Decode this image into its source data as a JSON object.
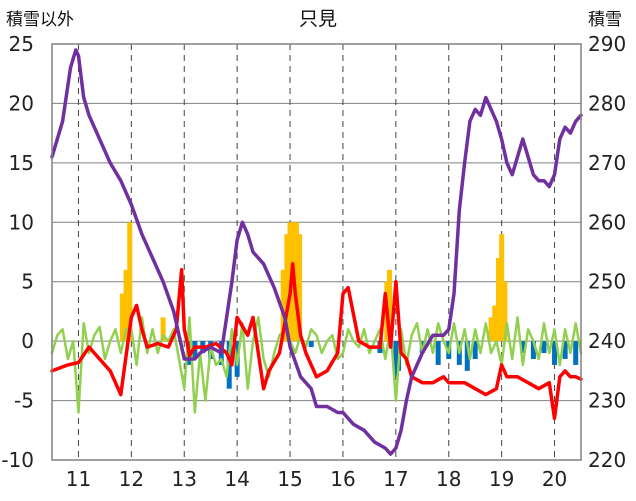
{
  "chart_data": {
    "type": "line",
    "title": "只見",
    "ylabel_left": "積雪以外",
    "ylabel_right": "積雪",
    "x_ticks": [
      "11",
      "12",
      "13",
      "14",
      "15",
      "16",
      "17",
      "18",
      "19",
      "20"
    ],
    "xlim": [
      10.5,
      20.5
    ],
    "ylim_left": [
      -10,
      25
    ],
    "ylim_right": [
      220,
      290
    ],
    "y_ticks_left": [
      -10,
      -5,
      0,
      5,
      10,
      15,
      20,
      25
    ],
    "y_ticks_right": [
      220,
      230,
      240,
      250,
      260,
      270,
      280,
      290
    ],
    "grid": "vertical dashed at each day, horizontal solid",
    "colors": {
      "snow_depth": "#7030A0",
      "temperature": "#FF0000",
      "precipitation_pos": "#FFC000",
      "precipitation_neg": "#0070C0",
      "snow_change": "#92D050"
    },
    "series": [
      {
        "key": "snow_depth",
        "axis": "right",
        "x": [
          10.5,
          10.7,
          10.85,
          10.95,
          11.0,
          11.1,
          11.2,
          11.4,
          11.6,
          11.8,
          12.0,
          12.2,
          12.4,
          12.6,
          12.8,
          12.9,
          13.0,
          13.2,
          13.3,
          13.5,
          13.7,
          13.9,
          14.0,
          14.1,
          14.2,
          14.3,
          14.5,
          14.7,
          14.9,
          15.0,
          15.2,
          15.4,
          15.5,
          15.7,
          15.9,
          16.0,
          16.2,
          16.4,
          16.6,
          16.8,
          16.9,
          17.0,
          17.1,
          17.2,
          17.3,
          17.5,
          17.7,
          17.9,
          18.0,
          18.1,
          18.2,
          18.3,
          18.4,
          18.5,
          18.6,
          18.7,
          18.8,
          18.9,
          19.0,
          19.1,
          19.2,
          19.3,
          19.4,
          19.5,
          19.6,
          19.7,
          19.8,
          19.9,
          20.0,
          20.1,
          20.2,
          20.3,
          20.4,
          20.5
        ],
        "y": [
          271,
          277,
          286,
          289,
          288,
          281,
          278,
          274,
          270,
          267,
          263,
          258,
          254,
          250,
          245,
          241,
          237,
          237,
          238,
          239,
          238,
          250,
          257,
          260,
          258,
          255,
          253,
          249,
          244,
          239,
          234,
          232,
          229,
          229,
          228,
          228,
          226,
          225,
          223,
          222,
          221,
          222,
          225,
          230,
          234,
          238,
          241,
          241,
          242,
          248,
          262,
          270,
          277,
          279,
          278,
          281,
          279,
          277,
          274,
          270,
          268,
          271,
          274,
          271,
          268,
          267,
          267,
          266,
          268,
          274,
          276,
          275,
          277,
          278
        ]
      },
      {
        "key": "temperature",
        "axis": "left",
        "x": [
          10.5,
          10.8,
          11.0,
          11.2,
          11.4,
          11.6,
          11.8,
          12.0,
          12.1,
          12.2,
          12.3,
          12.5,
          12.7,
          12.85,
          12.95,
          13.0,
          13.05,
          13.1,
          13.2,
          13.4,
          13.6,
          13.8,
          13.9,
          14.0,
          14.2,
          14.3,
          14.4,
          14.5,
          14.6,
          14.8,
          15.0,
          15.05,
          15.1,
          15.2,
          15.3,
          15.5,
          15.7,
          15.9,
          16.0,
          16.1,
          16.3,
          16.5,
          16.7,
          16.8,
          16.9,
          17.0,
          17.1,
          17.2,
          17.3,
          17.5,
          17.7,
          17.9,
          18.0,
          18.3,
          18.5,
          18.7,
          18.9,
          19.0,
          19.1,
          19.3,
          19.5,
          19.7,
          19.9,
          20.0,
          20.1,
          20.2,
          20.3,
          20.4,
          20.5
        ],
        "y": [
          -2.5,
          -2,
          -1.8,
          -0.5,
          -1.5,
          -2.5,
          -4.5,
          2,
          3,
          1,
          -0.5,
          -0.2,
          -0.5,
          1,
          6,
          1,
          0,
          -1.2,
          -0.5,
          -0.5,
          -0.2,
          -1,
          -2,
          2,
          0.5,
          2,
          -1,
          -4,
          -2.5,
          -1,
          4,
          6.5,
          4,
          0.5,
          -1,
          -3,
          -2.5,
          -1,
          4,
          4.5,
          0,
          -0.5,
          -0.5,
          4,
          -0.5,
          5,
          -1,
          -1.5,
          -3,
          -3.5,
          -3.5,
          -3,
          -3.5,
          -3.5,
          -4,
          -4.5,
          -4,
          -2,
          -3,
          -3,
          -3.5,
          -4,
          -3.5,
          -6.5,
          -3,
          -2.5,
          -3,
          -3,
          -3.2
        ]
      },
      {
        "key": "snow_change",
        "axis": "left",
        "x": [
          10.5,
          10.6,
          10.7,
          10.8,
          10.9,
          11.0,
          11.1,
          11.2,
          11.3,
          11.4,
          11.5,
          11.6,
          11.7,
          11.8,
          11.9,
          12.0,
          12.1,
          12.2,
          12.3,
          12.4,
          12.5,
          12.6,
          12.7,
          12.8,
          12.9,
          13.0,
          13.1,
          13.2,
          13.3,
          13.4,
          13.5,
          13.6,
          13.7,
          13.8,
          13.9,
          14.0,
          14.1,
          14.2,
          14.3,
          14.4,
          14.5,
          14.6,
          14.7,
          14.8,
          14.9,
          15.0,
          15.1,
          15.2,
          15.3,
          15.4,
          15.5,
          15.6,
          15.7,
          15.8,
          15.9,
          16.0,
          16.1,
          16.2,
          16.3,
          16.4,
          16.5,
          16.6,
          16.7,
          16.8,
          16.9,
          17.0,
          17.1,
          17.2,
          17.3,
          17.4,
          17.5,
          17.6,
          17.7,
          17.8,
          17.9,
          18.0,
          18.1,
          18.2,
          18.3,
          18.4,
          18.5,
          18.6,
          18.7,
          18.8,
          18.9,
          19.0,
          19.1,
          19.2,
          19.3,
          19.4,
          19.5,
          19.6,
          19.7,
          19.8,
          19.9,
          20.0,
          20.1,
          20.2,
          20.3,
          20.4,
          20.5
        ],
        "y": [
          -1,
          0.5,
          1,
          -1.5,
          0,
          -6,
          1.5,
          -1,
          0.5,
          1.2,
          -1.5,
          0,
          1,
          -1,
          1,
          1,
          -2,
          2,
          -1,
          1,
          -1,
          0.5,
          0,
          1,
          -1.5,
          -4,
          2,
          -6,
          -1,
          -5,
          -0.5,
          -2,
          -1.5,
          -3,
          1,
          -2,
          1.5,
          -4,
          0,
          2,
          -1.5,
          -3,
          -1,
          0.5,
          1,
          0,
          -1,
          0.5,
          -0.5,
          1,
          0.5,
          -1,
          0,
          0.5,
          -1.5,
          -1,
          1,
          0,
          -0.5,
          1,
          -1,
          0,
          1,
          -1.5,
          1,
          -5,
          1,
          -2,
          0.5,
          1.5,
          -1,
          1,
          -1,
          1.5,
          0,
          -1,
          1.5,
          -1,
          1,
          -1.5,
          1,
          -1,
          1.5,
          -1,
          0,
          -2,
          1.5,
          -1.5,
          2,
          -2,
          1,
          0,
          -1.5,
          1.5,
          -1,
          1,
          -2,
          1,
          -1,
          1.5,
          -1
        ]
      }
    ],
    "bars_positive": {
      "axis": "left",
      "x": [
        11.83,
        11.9,
        11.97,
        12.6,
        14.87,
        14.94,
        15.0,
        15.06,
        15.12,
        15.18,
        16.83,
        16.88,
        18.8,
        18.87,
        18.94,
        19.0,
        19.06
      ],
      "y": [
        4,
        6,
        10,
        2,
        6,
        9,
        10,
        10,
        10,
        9,
        5,
        6,
        2,
        3,
        7,
        9,
        5
      ]
    },
    "bars_negative": {
      "axis": "left",
      "x": [
        13.1,
        13.2,
        13.35,
        13.5,
        13.7,
        13.85,
        14.0,
        15.4,
        16.7,
        17.0,
        17.05,
        17.5,
        17.8,
        18.0,
        18.2,
        18.35,
        18.5,
        19.4,
        19.6,
        19.8,
        20.0,
        20.2,
        20.4
      ],
      "y": [
        -2,
        -1.5,
        -1,
        -1.5,
        -2,
        -4,
        -3,
        -0.5,
        -1,
        -3,
        -2.5,
        -1,
        -2,
        -1.5,
        -2,
        -2.5,
        -1.5,
        -1,
        -1.5,
        -1,
        -2,
        -1.5,
        -2
      ]
    }
  }
}
